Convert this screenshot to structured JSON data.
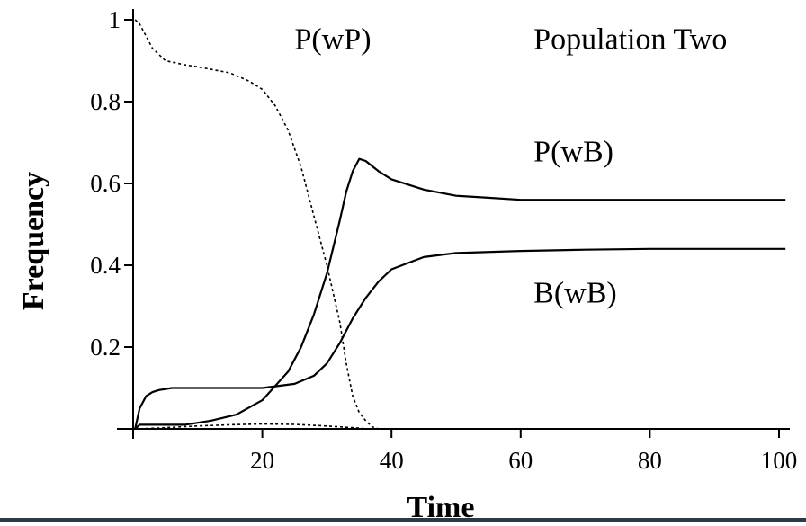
{
  "chart_data": {
    "type": "line",
    "title": "Population Two",
    "xlabel": "Time",
    "ylabel": "Frequency",
    "xlim": [
      0,
      102
    ],
    "ylim": [
      0,
      1.0
    ],
    "x_ticks": [
      20,
      40,
      60,
      80,
      100
    ],
    "y_ticks": [
      0.2,
      0.4,
      0.6,
      0.8,
      1
    ],
    "x_tick_labels": [
      "20",
      "40",
      "60",
      "80",
      "100"
    ],
    "y_tick_labels": [
      "0.2",
      "0.4",
      "0.6",
      "0.8",
      "1"
    ],
    "grid": false,
    "legend": "none (inline curve labels)",
    "colors": {
      "line": "#000000",
      "background": "#ffffff"
    },
    "series": [
      {
        "name": "P(wP)",
        "style": "dashed",
        "x": [
          0.3,
          1,
          2,
          3,
          5,
          8,
          10,
          15,
          18,
          20,
          22,
          24,
          26,
          28,
          30,
          31,
          32,
          33,
          34,
          35,
          36,
          37,
          38
        ],
        "y": [
          1.0,
          0.99,
          0.96,
          0.93,
          0.9,
          0.89,
          0.885,
          0.87,
          0.85,
          0.83,
          0.79,
          0.73,
          0.64,
          0.52,
          0.4,
          0.33,
          0.26,
          0.16,
          0.08,
          0.04,
          0.02,
          0.005,
          0.0
        ]
      },
      {
        "name": "P(wB)",
        "style": "solid",
        "x": [
          0.3,
          1,
          2,
          3,
          4,
          6,
          8,
          12,
          16,
          20,
          24,
          26,
          28,
          30,
          32,
          33,
          34,
          35,
          36,
          38,
          40,
          45,
          50,
          55,
          60,
          70,
          80,
          90,
          100,
          101
        ],
        "y": [
          0.0,
          0.01,
          0.01,
          0.01,
          0.01,
          0.01,
          0.01,
          0.02,
          0.035,
          0.07,
          0.14,
          0.2,
          0.28,
          0.38,
          0.51,
          0.58,
          0.63,
          0.66,
          0.655,
          0.63,
          0.61,
          0.585,
          0.57,
          0.565,
          0.56,
          0.56,
          0.56,
          0.56,
          0.56,
          0.56
        ]
      },
      {
        "name": "B(wB)",
        "style": "solid",
        "x": [
          0.3,
          1,
          2,
          3,
          4,
          6,
          10,
          15,
          20,
          25,
          28,
          30,
          32,
          34,
          36,
          38,
          40,
          45,
          50,
          60,
          70,
          80,
          90,
          100,
          101
        ],
        "y": [
          0.0,
          0.05,
          0.08,
          0.09,
          0.095,
          0.1,
          0.1,
          0.1,
          0.1,
          0.11,
          0.13,
          0.16,
          0.21,
          0.27,
          0.32,
          0.36,
          0.39,
          0.42,
          0.43,
          0.435,
          0.438,
          0.44,
          0.44,
          0.44,
          0.44
        ]
      },
      {
        "name": "",
        "style": "dashed",
        "x": [
          0.3,
          2,
          5,
          10,
          15,
          20,
          25,
          30,
          33,
          35,
          36
        ],
        "y": [
          0.0,
          0.001,
          0.003,
          0.007,
          0.01,
          0.012,
          0.011,
          0.007,
          0.004,
          0.002,
          0.0
        ]
      }
    ],
    "annotations": [
      {
        "text": "P(wP)",
        "x": 25,
        "y": 0.955
      },
      {
        "text": "Population Two",
        "x": 62,
        "y": 0.955
      },
      {
        "text": "P(wB)",
        "x": 62,
        "y": 0.68
      },
      {
        "text": "B(wB)",
        "x": 62,
        "y": 0.335
      }
    ]
  }
}
